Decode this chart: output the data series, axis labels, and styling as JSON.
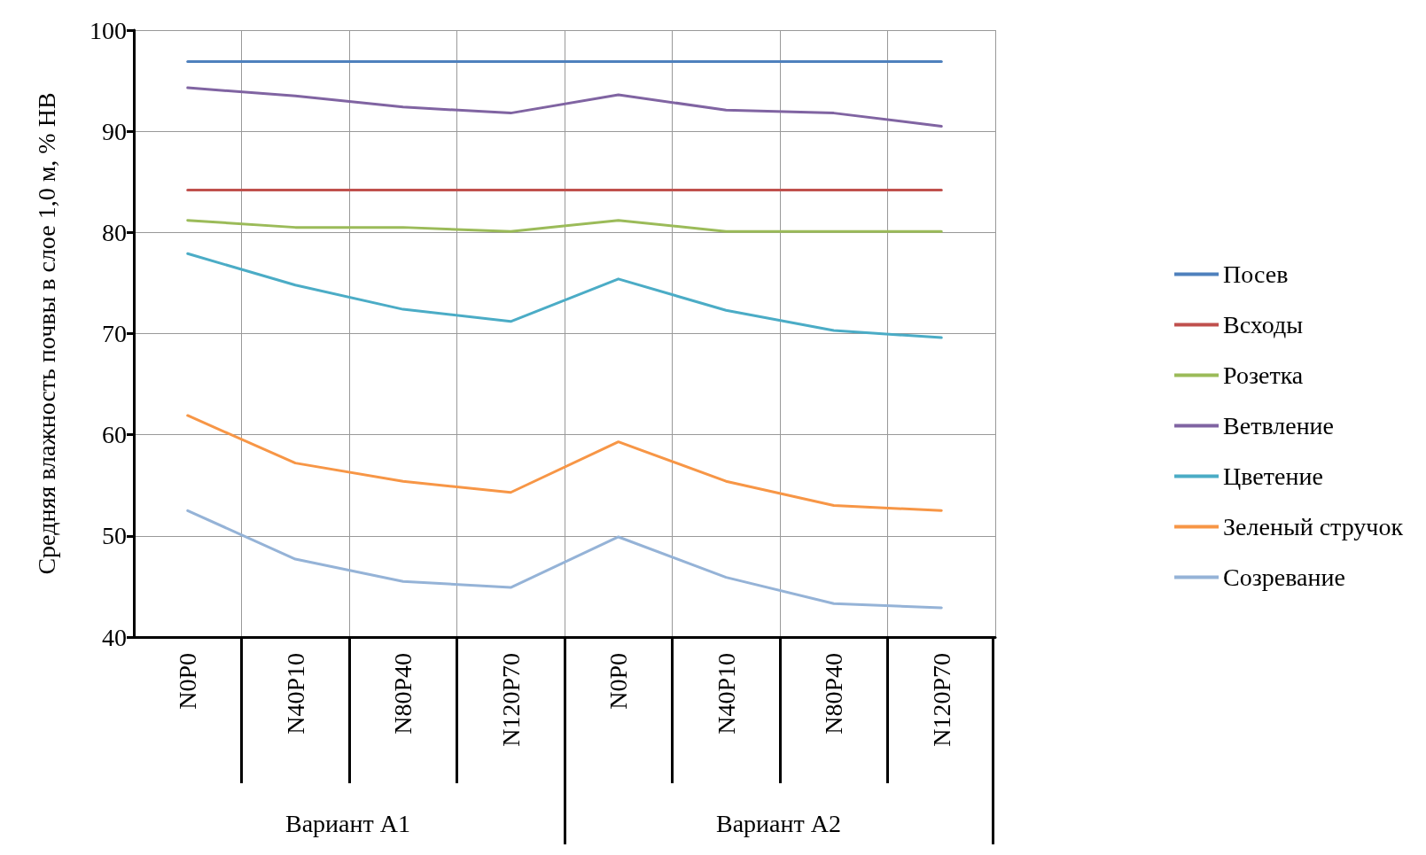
{
  "chart_data": {
    "type": "line",
    "ylabel": "Средняя влажность почвы в слое 1,0 м, % НВ",
    "categories": [
      "N0P0",
      "N40P10",
      "N80P40",
      "N120P70",
      "N0P0",
      "N40P10",
      "N80P40",
      "N120P70"
    ],
    "annotations": [
      "Вариант А1",
      "Вариант А2"
    ],
    "series": [
      {
        "name": "Посев",
        "color": "#4f81bd",
        "values": [
          96.9,
          96.9,
          96.9,
          96.9,
          96.9,
          96.9,
          96.9,
          96.9
        ]
      },
      {
        "name": "Всходы",
        "color": "#c0504d",
        "values": [
          84.2,
          84.2,
          84.2,
          84.2,
          84.2,
          84.2,
          84.2,
          84.2
        ]
      },
      {
        "name": "Розетка",
        "color": "#9bbb59",
        "values": [
          81.2,
          80.5,
          80.5,
          80.1,
          81.2,
          80.1,
          80.1,
          80.1
        ]
      },
      {
        "name": "Ветвление",
        "color": "#8064a2",
        "values": [
          94.3,
          93.5,
          92.4,
          91.8,
          93.6,
          92.1,
          91.8,
          90.5
        ]
      },
      {
        "name": "Цветение",
        "color": "#4bacc6",
        "values": [
          77.9,
          74.8,
          72.4,
          71.2,
          75.4,
          72.3,
          70.3,
          69.6
        ]
      },
      {
        "name": "Зеленый стручок",
        "color": "#f79646",
        "values": [
          61.9,
          57.2,
          55.4,
          54.3,
          59.3,
          55.4,
          53.0,
          52.5
        ]
      },
      {
        "name": "Созревание",
        "color": "#95b3d7",
        "values": [
          52.5,
          47.7,
          45.5,
          44.9,
          49.9,
          45.9,
          43.3,
          42.9
        ]
      }
    ],
    "ylim": [
      40,
      100
    ],
    "yticks": [
      40,
      50,
      60,
      70,
      80,
      90,
      100
    ],
    "grid": true,
    "legend": "right",
    "marker": "none",
    "line_style": "solid"
  }
}
